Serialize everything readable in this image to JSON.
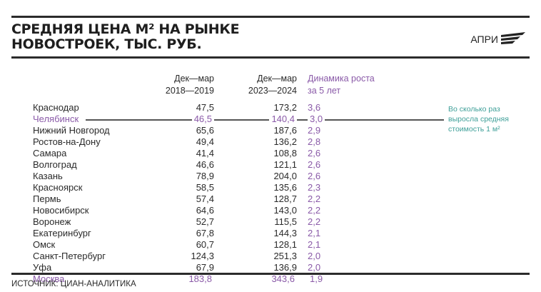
{
  "title": {
    "line1": "СРЕДНЯЯ ЦЕНА М² НА РЫНКЕ",
    "line2": "НОВОСТРОЕК, ТЫС. РУБ."
  },
  "logo": "АПРИ",
  "colors": {
    "accent": "#8a5aa8",
    "note": "#3e9f98"
  },
  "chart_data": {
    "type": "table",
    "columns": [
      {
        "line1": "Дек—мар",
        "line2": "2018—2019"
      },
      {
        "line1": "Дек—мар",
        "line2": "2023—2024"
      },
      {
        "line1": "Динамика роста",
        "line2": "за 5 лет"
      }
    ],
    "rows": [
      {
        "city": "Краснодар",
        "v1": "47,5",
        "v2": "173,2",
        "g": "3,6"
      },
      {
        "city": "Челябинск",
        "v1": "46,5",
        "v2": "140,4",
        "g": "3,0",
        "highlight": true
      },
      {
        "city": "Нижний Новгород",
        "v1": "65,6",
        "v2": "187,6",
        "g": "2,9"
      },
      {
        "city": "Ростов-на-Дону",
        "v1": "49,4",
        "v2": "136,2",
        "g": "2,8"
      },
      {
        "city": "Самара",
        "v1": "41,4",
        "v2": "108,8",
        "g": "2,6"
      },
      {
        "city": "Волгоград",
        "v1": "46,6",
        "v2": "121,1",
        "g": "2,6"
      },
      {
        "city": "Казань",
        "v1": "78,9",
        "v2": "204,0",
        "g": "2,6"
      },
      {
        "city": "Красноярск",
        "v1": "58,5",
        "v2": "135,6",
        "g": "2,3"
      },
      {
        "city": "Пермь",
        "v1": "57,4",
        "v2": "128,7",
        "g": "2,2"
      },
      {
        "city": "Новосибирск",
        "v1": "64,6",
        "v2": "143,0",
        "g": "2,2"
      },
      {
        "city": "Воронеж",
        "v1": "52,7",
        "v2": "115,5",
        "g": "2,2"
      },
      {
        "city": "Екатеринбург",
        "v1": "67,8",
        "v2": "144,3",
        "g": "2,1"
      },
      {
        "city": "Омск",
        "v1": "60,7",
        "v2": "128,1",
        "g": "2,1"
      },
      {
        "city": "Санкт-Петербург",
        "v1": "124,3",
        "v2": "251,3",
        "g": "2,0"
      },
      {
        "city": "Уфа",
        "v1": "67,9",
        "v2": "136,9",
        "g": "2,0"
      },
      {
        "city": "Москва",
        "v1": "183,8",
        "v2": "343,6",
        "g": "1,9",
        "highlight": true
      }
    ],
    "note": [
      "Во сколько раз",
      "выросла средняя",
      "стоимость 1 м²"
    ]
  },
  "source": "ИСТОЧНИК: ЦИАН-АНАЛИТИКА"
}
